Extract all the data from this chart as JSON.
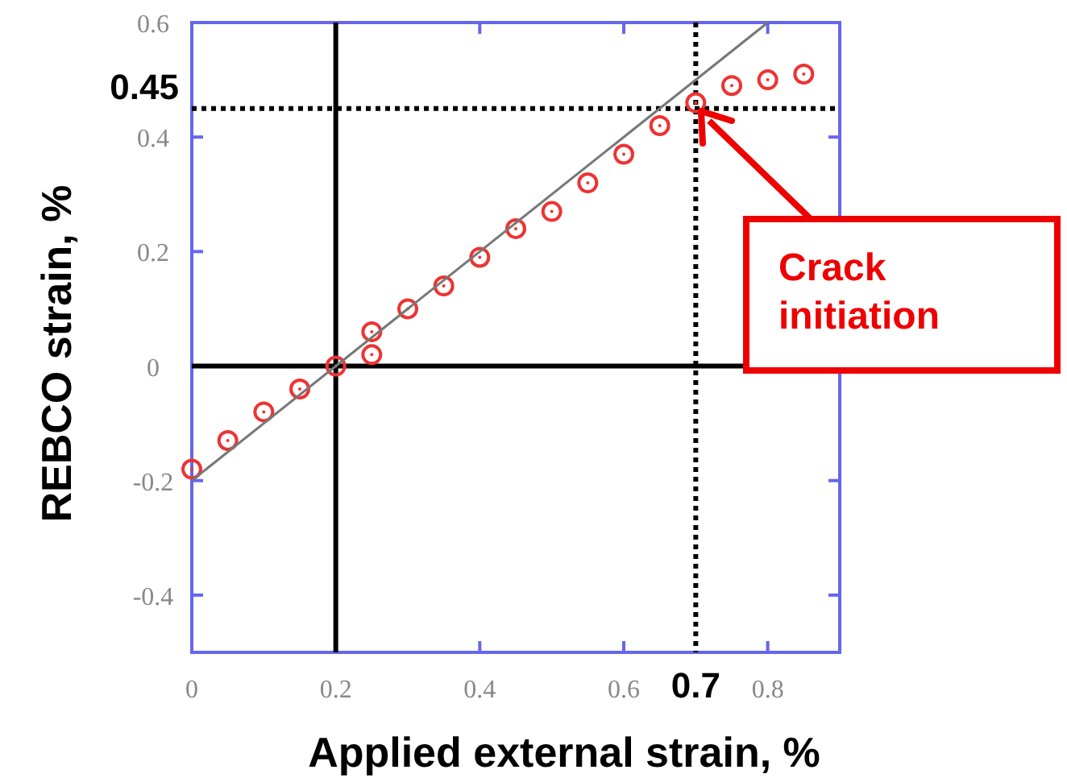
{
  "chart_data": {
    "type": "scatter",
    "xlabel": "Applied external strain, %",
    "ylabel": "REBCO strain, %",
    "xlim": [
      0,
      0.9
    ],
    "ylim": [
      -0.5,
      0.6
    ],
    "xticks": [
      0,
      0.2,
      0.4,
      0.6,
      0.8
    ],
    "yticks": [
      -0.4,
      -0.2,
      0,
      0.2,
      0.4,
      0.6
    ],
    "grid": false,
    "series": [
      {
        "color": "#ee3333",
        "marker": "circle",
        "x": [
          0,
          0.05,
          0.1,
          0.15,
          0.2,
          0.25,
          0.25,
          0.3,
          0.35,
          0.4,
          0.45,
          0.5,
          0.55,
          0.6,
          0.65,
          0.7,
          0.75,
          0.8,
          0.85
        ],
        "values": [
          -0.18,
          -0.13,
          -0.08,
          -0.04,
          0.0,
          0.06,
          0.02,
          0.1,
          0.14,
          0.19,
          0.24,
          0.27,
          0.32,
          0.37,
          0.42,
          0.46,
          0.49,
          0.5,
          0.51
        ]
      },
      {
        "type": "line",
        "color": "#777777",
        "marker": "none",
        "line_style": "solid",
        "x": [
          0,
          0.8
        ],
        "values": [
          -0.2,
          0.6
        ]
      }
    ],
    "ref_lines": [
      {
        "axis": "x",
        "value": 0.2,
        "color": "#000000",
        "line_style": "solid"
      },
      {
        "axis": "y",
        "value": 0,
        "color": "#000000",
        "line_style": "solid"
      },
      {
        "axis": "x",
        "value": 0.7,
        "label": "0.7",
        "color": "#000000",
        "line_style": "dotted"
      },
      {
        "axis": "y",
        "value": 0.45,
        "label": "0.45",
        "color": "#000000",
        "line_style": "dotted"
      }
    ],
    "annotations": [
      "Crack initiation"
    ]
  }
}
